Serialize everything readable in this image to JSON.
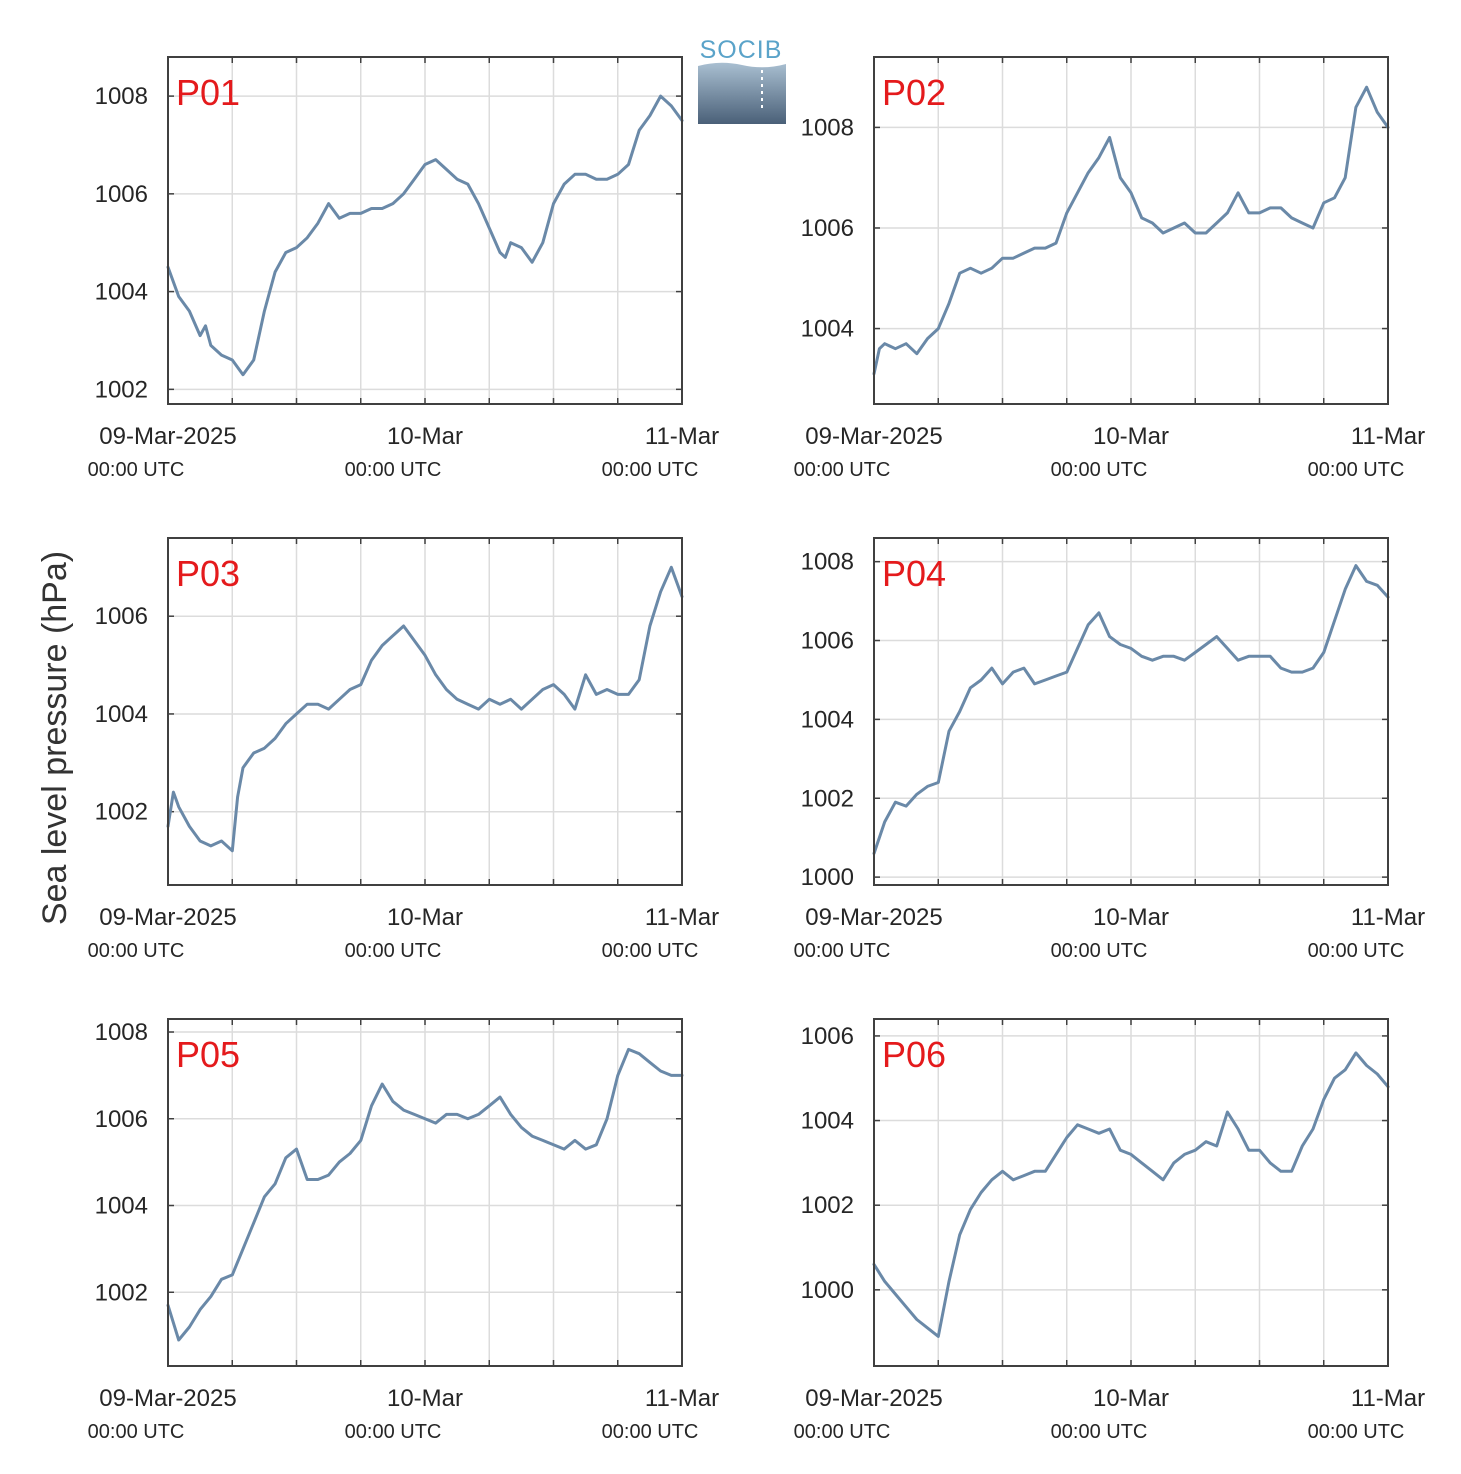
{
  "figure": {
    "ylabel": "Sea level pressure (hPa)",
    "logo_text": "SOCIB",
    "colors": {
      "line": "#6a89a8",
      "grid": "#dcdcdc",
      "axes": "#404040",
      "panel_label": "#e41a1c",
      "logo_blue": "#5aa3c9",
      "logo_dark": "#4a6078"
    }
  },
  "chart_data": [
    {
      "type": "line",
      "panel": "P01",
      "xlim": [
        "09-Mar-2025 00:00 UTC",
        "11-Mar 00:00 UTC"
      ],
      "x_ticks": [
        {
          "date": "09-Mar-2025",
          "time": "00:00 UTC"
        },
        {
          "date": "10-Mar",
          "time": "00:00 UTC"
        },
        {
          "date": "11-Mar",
          "time": "00:00 UTC"
        }
      ],
      "ylim": [
        1001.7,
        1008.8
      ],
      "yticks": [
        1002,
        1004,
        1006,
        1008
      ],
      "grid": true,
      "series": [
        {
          "x_hours": [
            0,
            1,
            2,
            3,
            3.5,
            4,
            5,
            6,
            7,
            8,
            9,
            9.5,
            10,
            11,
            12,
            13,
            14,
            15,
            16,
            17,
            18,
            19,
            20,
            21,
            22,
            23,
            24,
            25,
            26,
            27,
            28,
            29,
            30,
            31,
            31.5,
            32,
            33,
            34,
            35,
            36,
            37,
            38,
            39,
            40,
            41,
            42,
            43,
            44,
            45,
            46,
            47,
            48
          ],
          "values": [
            1004.5,
            1003.9,
            1003.6,
            1003.1,
            1003.3,
            1002.9,
            1002.7,
            1002.6,
            1002.3,
            1002.6,
            1003.6,
            1004.0,
            1004.4,
            1004.8,
            1004.9,
            1005.1,
            1005.4,
            1005.8,
            1005.5,
            1005.6,
            1005.6,
            1005.7,
            1005.7,
            1005.8,
            1006.0,
            1006.3,
            1006.6,
            1006.7,
            1006.5,
            1006.3,
            1006.2,
            1005.8,
            1005.3,
            1004.8,
            1004.7,
            1005.0,
            1004.9,
            1004.6,
            1005.0,
            1005.8,
            1006.2,
            1006.4,
            1006.4,
            1006.3,
            1006.3,
            1006.4,
            1006.6,
            1007.3,
            1007.6,
            1008.0,
            1007.8,
            1007.5
          ]
        }
      ]
    },
    {
      "type": "line",
      "panel": "P02",
      "xlim": [
        "09-Mar-2025 00:00 UTC",
        "11-Mar 00:00 UTC"
      ],
      "x_ticks": [
        {
          "date": "09-Mar-2025",
          "time": "00:00 UTC"
        },
        {
          "date": "10-Mar",
          "time": "00:00 UTC"
        },
        {
          "date": "11-Mar",
          "time": "00:00 UTC"
        }
      ],
      "ylim": [
        1002.5,
        1009.4
      ],
      "yticks": [
        1004,
        1006,
        1008
      ],
      "grid": true,
      "series": [
        {
          "x_hours": [
            0,
            0.5,
            1,
            2,
            3,
            4,
            5,
            6,
            7,
            8,
            9,
            10,
            11,
            12,
            13,
            14,
            15,
            16,
            17,
            18,
            19,
            20,
            21,
            22,
            23,
            24,
            25,
            26,
            27,
            28,
            29,
            30,
            31,
            32,
            33,
            34,
            35,
            36,
            37,
            38,
            39,
            40,
            41,
            42,
            43,
            44,
            45,
            46,
            47,
            48
          ],
          "values": [
            1003.1,
            1003.6,
            1003.7,
            1003.6,
            1003.7,
            1003.5,
            1003.8,
            1004.0,
            1004.5,
            1005.1,
            1005.2,
            1005.1,
            1005.2,
            1005.4,
            1005.4,
            1005.5,
            1005.6,
            1005.6,
            1005.7,
            1006.3,
            1006.7,
            1007.1,
            1007.4,
            1007.8,
            1007.0,
            1006.7,
            1006.2,
            1006.1,
            1005.9,
            1006.0,
            1006.1,
            1005.9,
            1005.9,
            1006.1,
            1006.3,
            1006.7,
            1006.3,
            1006.3,
            1006.4,
            1006.4,
            1006.2,
            1006.1,
            1006.0,
            1006.5,
            1006.6,
            1007.0,
            1008.4,
            1008.8,
            1008.3,
            1008.0
          ]
        }
      ]
    },
    {
      "type": "line",
      "panel": "P03",
      "xlim": [
        "09-Mar-2025 00:00 UTC",
        "11-Mar 00:00 UTC"
      ],
      "x_ticks": [
        {
          "date": "09-Mar-2025",
          "time": "00:00 UTC"
        },
        {
          "date": "10-Mar",
          "time": "00:00 UTC"
        },
        {
          "date": "11-Mar",
          "time": "00:00 UTC"
        }
      ],
      "ylim": [
        1000.5,
        1007.6
      ],
      "yticks": [
        1002,
        1004,
        1006
      ],
      "grid": true,
      "series": [
        {
          "x_hours": [
            0,
            0.5,
            1,
            2,
            3,
            4,
            5,
            6,
            6.5,
            7,
            8,
            9,
            10,
            11,
            12,
            13,
            14,
            15,
            16,
            17,
            18,
            19,
            20,
            21,
            22,
            23,
            24,
            25,
            26,
            27,
            28,
            29,
            30,
            31,
            32,
            33,
            34,
            35,
            36,
            37,
            38,
            39,
            40,
            41,
            42,
            43,
            44,
            45,
            46,
            47,
            48
          ],
          "values": [
            1001.7,
            1002.4,
            1002.1,
            1001.7,
            1001.4,
            1001.3,
            1001.4,
            1001.2,
            1002.3,
            1002.9,
            1003.2,
            1003.3,
            1003.5,
            1003.8,
            1004.0,
            1004.2,
            1004.2,
            1004.1,
            1004.3,
            1004.5,
            1004.6,
            1005.1,
            1005.4,
            1005.6,
            1005.8,
            1005.5,
            1005.2,
            1004.8,
            1004.5,
            1004.3,
            1004.2,
            1004.1,
            1004.3,
            1004.2,
            1004.3,
            1004.1,
            1004.3,
            1004.5,
            1004.6,
            1004.4,
            1004.1,
            1004.8,
            1004.4,
            1004.5,
            1004.4,
            1004.4,
            1004.7,
            1005.8,
            1006.5,
            1007.0,
            1006.4
          ]
        }
      ]
    },
    {
      "type": "line",
      "panel": "P04",
      "xlim": [
        "09-Mar-2025 00:00 UTC",
        "11-Mar 00:00 UTC"
      ],
      "x_ticks": [
        {
          "date": "09-Mar-2025",
          "time": "00:00 UTC"
        },
        {
          "date": "10-Mar",
          "time": "00:00 UTC"
        },
        {
          "date": "11-Mar",
          "time": "00:00 UTC"
        }
      ],
      "ylim": [
        999.8,
        1008.6
      ],
      "yticks": [
        1000,
        1002,
        1004,
        1006,
        1008
      ],
      "grid": true,
      "series": [
        {
          "x_hours": [
            0,
            1,
            2,
            3,
            4,
            5,
            6,
            7,
            8,
            9,
            10,
            11,
            12,
            13,
            14,
            15,
            16,
            17,
            18,
            19,
            20,
            21,
            22,
            23,
            24,
            25,
            26,
            27,
            28,
            29,
            30,
            31,
            32,
            33,
            34,
            35,
            36,
            37,
            38,
            39,
            40,
            41,
            42,
            43,
            44,
            45,
            46,
            47,
            48
          ],
          "values": [
            1000.6,
            1001.4,
            1001.9,
            1001.8,
            1002.1,
            1002.3,
            1002.4,
            1003.7,
            1004.2,
            1004.8,
            1005.0,
            1005.3,
            1004.9,
            1005.2,
            1005.3,
            1004.9,
            1005.0,
            1005.1,
            1005.2,
            1005.8,
            1006.4,
            1006.7,
            1006.1,
            1005.9,
            1005.8,
            1005.6,
            1005.5,
            1005.6,
            1005.6,
            1005.5,
            1005.7,
            1005.9,
            1006.1,
            1005.8,
            1005.5,
            1005.6,
            1005.6,
            1005.6,
            1005.3,
            1005.2,
            1005.2,
            1005.3,
            1005.7,
            1006.5,
            1007.3,
            1007.9,
            1007.5,
            1007.4,
            1007.1
          ]
        }
      ]
    },
    {
      "type": "line",
      "panel": "P05",
      "xlim": [
        "09-Mar-2025 00:00 UTC",
        "11-Mar 00:00 UTC"
      ],
      "x_ticks": [
        {
          "date": "09-Mar-2025",
          "time": "00:00 UTC"
        },
        {
          "date": "10-Mar",
          "time": "00:00 UTC"
        },
        {
          "date": "11-Mar",
          "time": "00:00 UTC"
        }
      ],
      "ylim": [
        1000.3,
        1008.3
      ],
      "yticks": [
        1002,
        1004,
        1006,
        1008
      ],
      "grid": true,
      "series": [
        {
          "x_hours": [
            0,
            1,
            2,
            3,
            4,
            5,
            6,
            7,
            8,
            9,
            10,
            11,
            12,
            13,
            14,
            15,
            16,
            17,
            18,
            19,
            20,
            21,
            22,
            23,
            24,
            25,
            26,
            27,
            28,
            29,
            30,
            31,
            32,
            33,
            34,
            35,
            36,
            37,
            38,
            39,
            40,
            41,
            42,
            43,
            44,
            45,
            46,
            47,
            48
          ],
          "values": [
            1001.7,
            1000.9,
            1001.2,
            1001.6,
            1001.9,
            1002.3,
            1002.4,
            1003.0,
            1003.6,
            1004.2,
            1004.5,
            1005.1,
            1005.3,
            1004.6,
            1004.6,
            1004.7,
            1005.0,
            1005.2,
            1005.5,
            1006.3,
            1006.8,
            1006.4,
            1006.2,
            1006.1,
            1006.0,
            1005.9,
            1006.1,
            1006.1,
            1006.0,
            1006.1,
            1006.3,
            1006.5,
            1006.1,
            1005.8,
            1005.6,
            1005.5,
            1005.4,
            1005.3,
            1005.5,
            1005.3,
            1005.4,
            1006.0,
            1007.0,
            1007.6,
            1007.5,
            1007.3,
            1007.1,
            1007.0,
            1007.0
          ]
        }
      ]
    },
    {
      "type": "line",
      "panel": "P06",
      "xlim": [
        "09-Mar-2025 00:00 UTC",
        "11-Mar 00:00 UTC"
      ],
      "x_ticks": [
        {
          "date": "09-Mar-2025",
          "time": "00:00 UTC"
        },
        {
          "date": "10-Mar",
          "time": "00:00 UTC"
        },
        {
          "date": "11-Mar",
          "time": "00:00 UTC"
        }
      ],
      "ylim": [
        998.2,
        1006.4
      ],
      "yticks": [
        1000,
        1002,
        1004,
        1006
      ],
      "grid": true,
      "series": [
        {
          "x_hours": [
            0,
            1,
            2,
            3,
            4,
            5,
            6,
            7,
            8,
            9,
            10,
            11,
            12,
            13,
            14,
            15,
            16,
            17,
            18,
            19,
            20,
            21,
            22,
            23,
            24,
            25,
            26,
            27,
            28,
            29,
            30,
            31,
            32,
            33,
            34,
            35,
            36,
            37,
            38,
            39,
            40,
            41,
            42,
            43,
            44,
            45,
            46,
            47,
            48
          ],
          "values": [
            1000.6,
            1000.2,
            999.9,
            999.6,
            999.3,
            999.1,
            998.9,
            1000.2,
            1001.3,
            1001.9,
            1002.3,
            1002.6,
            1002.8,
            1002.6,
            1002.7,
            1002.8,
            1002.8,
            1003.2,
            1003.6,
            1003.9,
            1003.8,
            1003.7,
            1003.8,
            1003.3,
            1003.2,
            1003.0,
            1002.8,
            1002.6,
            1003.0,
            1003.2,
            1003.3,
            1003.5,
            1003.4,
            1004.2,
            1003.8,
            1003.3,
            1003.3,
            1003.0,
            1002.8,
            1002.8,
            1003.4,
            1003.8,
            1004.5,
            1005.0,
            1005.2,
            1005.6,
            1005.3,
            1005.1,
            1004.8
          ]
        }
      ]
    }
  ]
}
